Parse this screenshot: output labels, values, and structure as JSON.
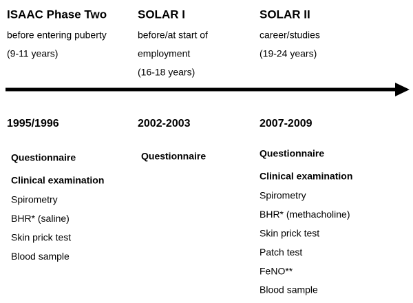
{
  "columns": [
    {
      "title": "ISAAC Phase Two",
      "description": [
        "before entering puberty",
        "(9-11 years)"
      ],
      "period": "1995/1996",
      "headings": [
        "Questionnaire",
        "Clinical examination"
      ],
      "items": [
        "Spirometry",
        "BHR* (saline)",
        "Skin prick test",
        "Blood sample"
      ]
    },
    {
      "title": "SOLAR I",
      "description": [
        "before/at start of",
        "employment",
        "(16-18 years)"
      ],
      "period": "2002-2003",
      "headings": [
        "Questionnaire"
      ],
      "items": []
    },
    {
      "title": "SOLAR II",
      "description": [
        "career/studies",
        "(19-24 years)"
      ],
      "period": "2007-2009",
      "headings": [
        "Questionnaire",
        "Clinical examination"
      ],
      "items": [
        "Spirometry",
        "BHR* (methacholine)",
        "Skin prick test",
        "Patch test",
        "FeNO**",
        "Blood sample"
      ]
    }
  ]
}
